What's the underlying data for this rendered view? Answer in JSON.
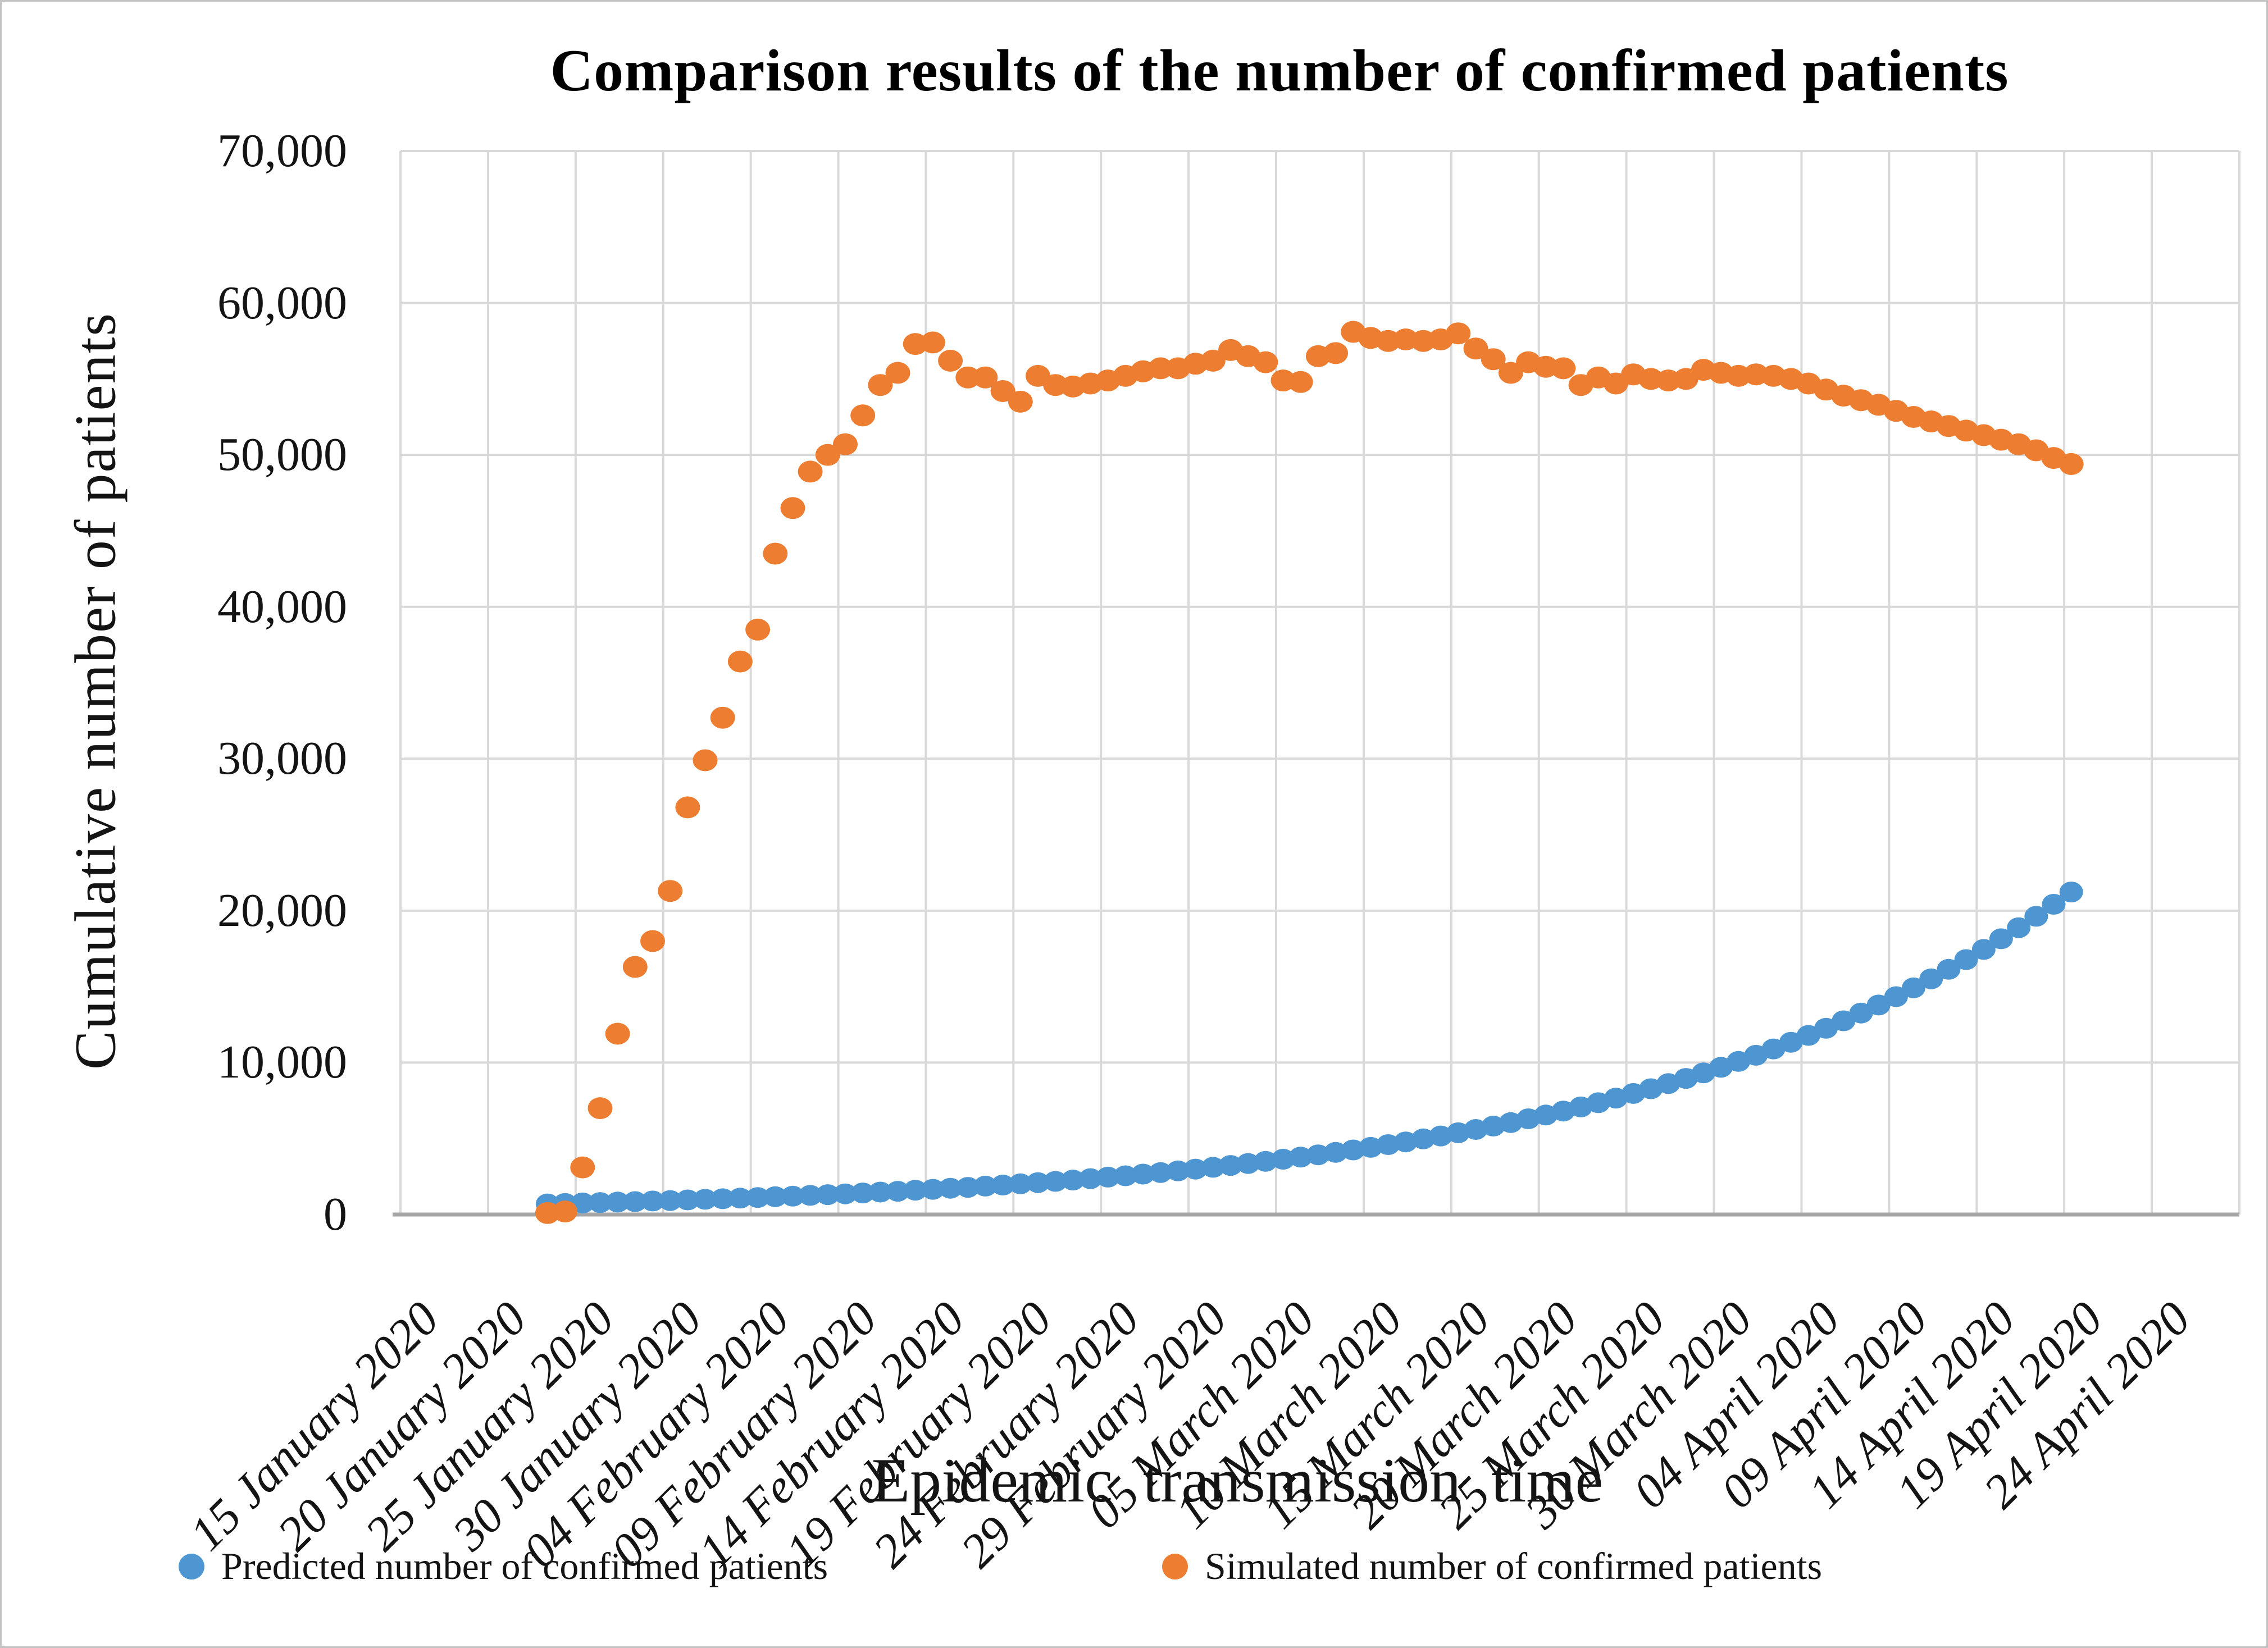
{
  "title": "Comparison results of the number of confirmed patients",
  "y_axis": {
    "label": "Cumulative number of patients",
    "ticks": [
      "0",
      "10,000",
      "20,000",
      "30,000",
      "40,000",
      "50,000",
      "60,000",
      "70,000"
    ],
    "min": 0,
    "max": 70000,
    "step": 10000
  },
  "x_axis": {
    "label": "Epidemic transmission time",
    "tick_labels": [
      "15 January 2020",
      "20 January 2020",
      "25 January 2020",
      "30 January 2020",
      "04 February 2020",
      "09 February 2020",
      "14 February 2020",
      "19 February 2020",
      "24 February 2020",
      "29 February 2020",
      "05 March 2020",
      "10 March 2020",
      "15 March 2020",
      "20 March 2020",
      "25 March 2020",
      "30 March 2020",
      "04 April 2020",
      "09 April 2020",
      "14 April 2020",
      "19 April 2020",
      "24 April 2020"
    ]
  },
  "legend": {
    "items": [
      {
        "label": "Predicted number of confirmed patients",
        "color": "#4E96D2"
      },
      {
        "label": "Simulated number of confirmed patients",
        "color": "#ED7D31"
      }
    ]
  },
  "colors": {
    "predicted": "#4E96D2",
    "simulated": "#ED7D31",
    "gridline": "#D9D9D9",
    "axis_line": "#A6A6A6",
    "text": "#141414"
  },
  "chart_data": {
    "type": "scatter",
    "title": "Comparison results of the number of confirmed patients",
    "xlabel": "Epidemic transmission time",
    "ylabel": "Cumulative number of patients",
    "ylim": [
      0,
      70000
    ],
    "y_tick_step": 10000,
    "x_tick_labels": [
      "15 January 2020",
      "20 January 2020",
      "25 January 2020",
      "30 January 2020",
      "04 February 2020",
      "09 February 2020",
      "14 February 2020",
      "19 February 2020",
      "24 February 2020",
      "29 February 2020",
      "05 March 2020",
      "10 March 2020",
      "15 March 2020",
      "20 March 2020",
      "25 March 2020",
      "30 March 2020",
      "04 April 2020",
      "09 April 2020",
      "14 April 2020",
      "19 April 2020",
      "24 April 2020"
    ],
    "frequency": "daily",
    "series_start_date": "23 January 2020",
    "series_end_date": "19 April 2020",
    "layout": {
      "grid": true,
      "legend_position": "bottom",
      "marker": "circle",
      "days_per_x_tick": 5,
      "start_day_offset_from_first_tick": 8.4
    },
    "series": [
      {
        "name": "Predicted number of confirmed patients",
        "color": "#4E96D2",
        "values": [
          700,
          730,
          760,
          790,
          820,
          850,
          890,
          920,
          960,
          1000,
          1040,
          1080,
          1120,
          1170,
          1210,
          1260,
          1310,
          1360,
          1420,
          1480,
          1530,
          1600,
          1660,
          1730,
          1790,
          1870,
          1940,
          2020,
          2100,
          2180,
          2270,
          2360,
          2460,
          2550,
          2660,
          2760,
          2870,
          2990,
          3110,
          3230,
          3360,
          3500,
          3640,
          3780,
          3930,
          4090,
          4250,
          4420,
          4600,
          4780,
          4980,
          5170,
          5380,
          5600,
          5820,
          6050,
          6300,
          6550,
          6810,
          7080,
          7360,
          7660,
          7970,
          8280,
          8620,
          8960,
          9320,
          9690,
          10080,
          10480,
          10900,
          11340,
          11790,
          12260,
          12750,
          13260,
          13790,
          14340,
          14920,
          15510,
          16140,
          16780,
          17450,
          18150,
          18880,
          19630,
          20420,
          21230
        ]
      },
      {
        "name": "Simulated number of confirmed patients",
        "color": "#ED7D31",
        "values": [
          100,
          200,
          3100,
          7000,
          11900,
          16300,
          18000,
          21300,
          26800,
          29900,
          32700,
          36400,
          38500,
          43500,
          46500,
          48900,
          50000,
          50700,
          52600,
          54600,
          55400,
          57300,
          57400,
          56200,
          55100,
          55100,
          54200,
          53500,
          55200,
          54600,
          54500,
          54700,
          54900,
          55200,
          55500,
          55700,
          55700,
          56000,
          56200,
          56900,
          56500,
          56100,
          54900,
          54800,
          56500,
          56700,
          58100,
          57700,
          57500,
          57600,
          57500,
          57600,
          58000,
          57000,
          56300,
          55400,
          56100,
          55800,
          55700,
          54600,
          55100,
          54700,
          55300,
          55000,
          54900,
          55000,
          55600,
          55400,
          55200,
          55300,
          55200,
          55000,
          54700,
          54300,
          53900,
          53600,
          53300,
          52900,
          52500,
          52200,
          51900,
          51600,
          51300,
          51000,
          50700,
          50300,
          49800,
          49400
        ]
      }
    ]
  }
}
